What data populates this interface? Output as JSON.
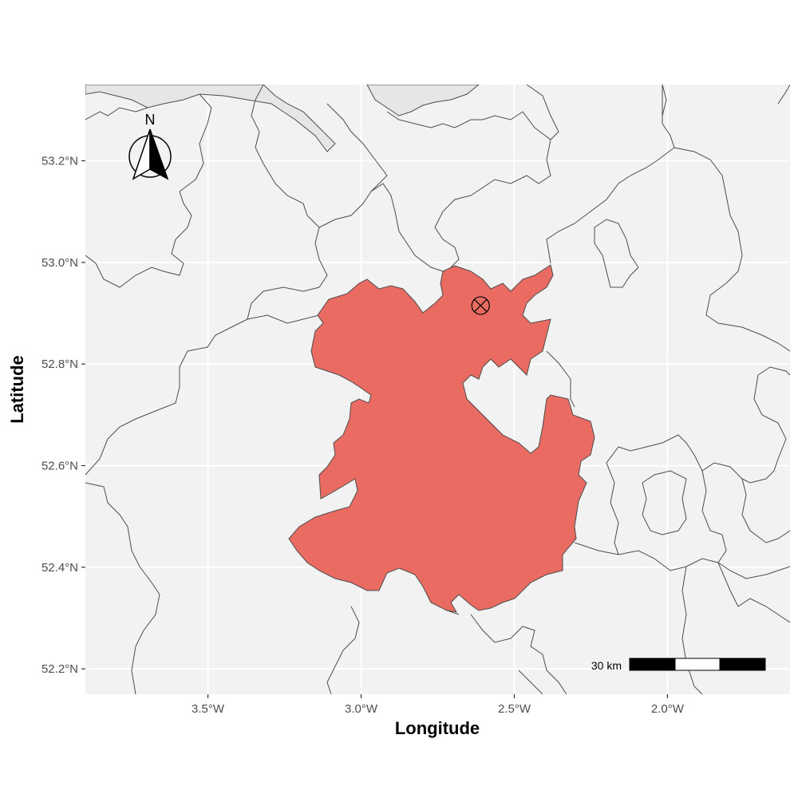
{
  "map": {
    "axes": {
      "xlabel": "Longitude",
      "ylabel": "Latitude",
      "xlim": [
        -3.9,
        -1.6
      ],
      "ylim": [
        52.15,
        53.35
      ],
      "x_ticks": [
        {
          "value": -3.5,
          "label": "3.5°W"
        },
        {
          "value": -3.0,
          "label": "3.0°W"
        },
        {
          "value": -2.5,
          "label": "2.5°W"
        },
        {
          "value": -2.0,
          "label": "2.0°W"
        }
      ],
      "y_ticks": [
        {
          "value": 52.2,
          "label": "52.2°N"
        },
        {
          "value": 52.4,
          "label": "52.4°N"
        },
        {
          "value": 52.6,
          "label": "52.6°N"
        },
        {
          "value": 52.8,
          "label": "52.8°N"
        },
        {
          "value": 53.0,
          "label": "53.0°N"
        },
        {
          "value": 53.2,
          "label": "53.2°N"
        }
      ],
      "grid": true
    },
    "colors": {
      "panel_background": "#f2f2f2",
      "grid": "#ffffff",
      "highlight_fill": "#e8665c",
      "sea_fill": "#e6e6e6",
      "border": "#4d4d4d"
    },
    "highlighted_region": {
      "fill": "#e8665c"
    },
    "marker": {
      "lon": -2.61,
      "lat": 52.915,
      "symbol": "circle-cross"
    },
    "north_arrow": {
      "label": "N",
      "position": "top-left"
    },
    "scale_bar": {
      "label": "30 km",
      "position": "bottom-right"
    }
  }
}
